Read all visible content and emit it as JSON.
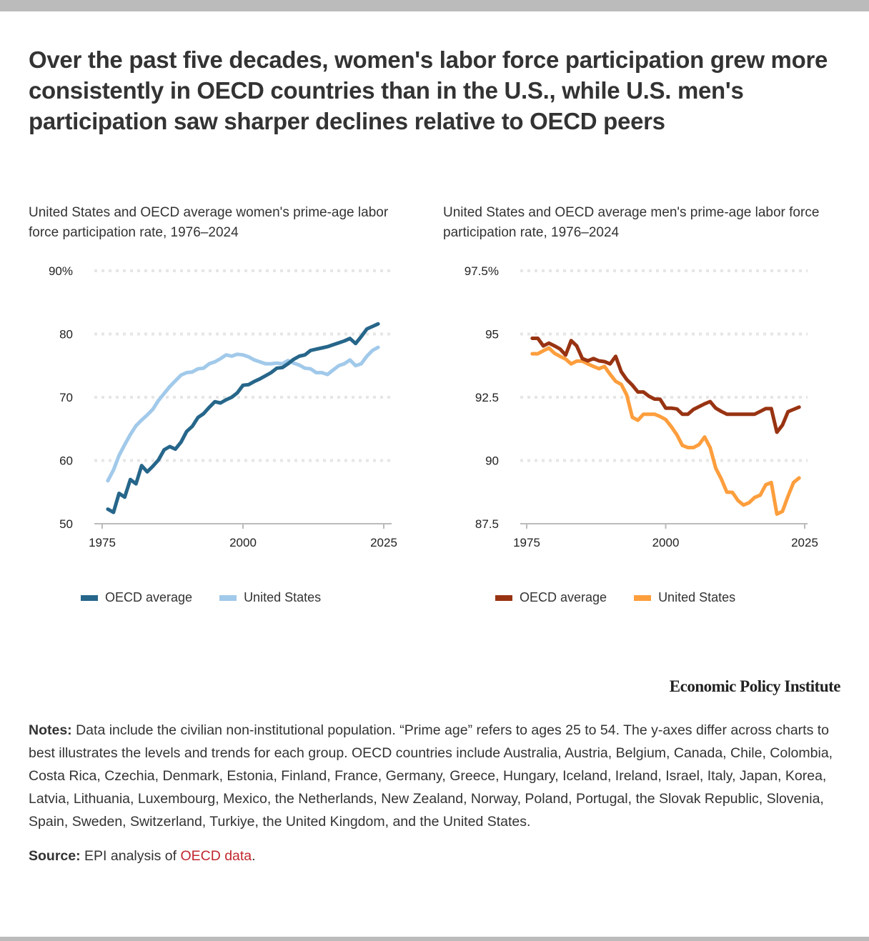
{
  "title": "Over the past five decades, women's labor force participation grew more consistently in OECD countries than in the U.S., while U.S. men's participation saw sharper declines relative to OECD peers",
  "branding": "Economic Policy Institute",
  "notes_label": "Notes:",
  "notes_text": "Data include the civilian non-institutional population. “Prime age” refers to ages 25 to 54. The y-axes differ across charts to best illustrates the levels and trends for each group. OECD countries include Australia, Austria, Belgium, Canada, Chile, Colombia, Costa Rica, Czechia, Denmark, Estonia, Finland, France, Germany, Greece, Hungary, Iceland, Ireland, Israel, Italy, Japan, Korea, Latvia, Lithuania, Luxembourg, Mexico, the Netherlands, New Zealand, Norway, Poland, Portugal, the Slovak Republic, Slovenia, Spain, Sweden, Switzerland, Turkiye, the United Kingdom, and the United States.",
  "source_label": "Source:",
  "source_prefix": "EPI analysis of",
  "source_link": "OECD data",
  "source_suffix": ".",
  "colors": {
    "women_oecd": "#26668a",
    "women_us": "#a1c9ea",
    "men_oecd": "#983312",
    "men_us": "#fd9e3d",
    "gridline": "#e6e6e6",
    "axis": "#bbbbbb",
    "link": "#c1272d"
  },
  "chart_data": [
    {
      "type": "line",
      "title": "United States and OECD average women's prime-age labor force participation rate, 1976–2024",
      "xlabel": "",
      "ylabel": "",
      "xlim": [
        1975,
        2025
      ],
      "ylim": [
        50,
        90
      ],
      "x_ticks": [
        1975,
        2000,
        2025
      ],
      "x_tick_labels": [
        "1975",
        "2000",
        "2025"
      ],
      "y_ticks": [
        50,
        60,
        70,
        80,
        90
      ],
      "y_tick_labels": [
        "50",
        "60",
        "70",
        "80",
        "90%"
      ],
      "grid": true,
      "legend_position": "bottom",
      "x": [
        1976,
        1977,
        1978,
        1979,
        1980,
        1981,
        1982,
        1983,
        1984,
        1985,
        1986,
        1987,
        1988,
        1989,
        1990,
        1991,
        1992,
        1993,
        1994,
        1995,
        1996,
        1997,
        1998,
        1999,
        2000,
        2001,
        2002,
        2003,
        2004,
        2005,
        2006,
        2007,
        2008,
        2009,
        2010,
        2011,
        2012,
        2013,
        2014,
        2015,
        2016,
        2017,
        2018,
        2019,
        2020,
        2021,
        2022,
        2023,
        2024
      ],
      "series": [
        {
          "name": "OECD average",
          "color_key": "women_oecd",
          "values": [
            52.3,
            51.8,
            54.8,
            54.2,
            57.0,
            56.3,
            59.2,
            58.2,
            59.1,
            60.1,
            61.7,
            62.2,
            61.8,
            62.9,
            64.6,
            65.4,
            66.8,
            67.4,
            68.4,
            69.3,
            69.1,
            69.6,
            70.0,
            70.7,
            71.9,
            72.0,
            72.5,
            72.9,
            73.4,
            73.9,
            74.6,
            74.7,
            75.3,
            76.0,
            76.5,
            76.7,
            77.4,
            77.6,
            77.8,
            78.0,
            78.3,
            78.6,
            78.9,
            79.3,
            78.5,
            79.6,
            80.8,
            81.2,
            81.6
          ]
        },
        {
          "name": "United States",
          "color_key": "women_us",
          "values": [
            56.8,
            58.5,
            60.8,
            62.5,
            64.1,
            65.5,
            66.4,
            67.2,
            68.1,
            69.5,
            70.6,
            71.7,
            72.6,
            73.5,
            73.9,
            74.0,
            74.5,
            74.6,
            75.3,
            75.6,
            76.1,
            76.7,
            76.5,
            76.8,
            76.7,
            76.4,
            75.9,
            75.6,
            75.3,
            75.3,
            75.4,
            75.3,
            75.8,
            75.4,
            75.1,
            74.6,
            74.5,
            73.9,
            73.9,
            73.6,
            74.3,
            75.0,
            75.3,
            75.9,
            75.0,
            75.3,
            76.5,
            77.4,
            77.9
          ]
        }
      ]
    },
    {
      "type": "line",
      "title": "United States and OECD average men's prime-age labor force participation rate, 1976–2024",
      "xlabel": "",
      "ylabel": "",
      "xlim": [
        1975,
        2025
      ],
      "ylim": [
        87.5,
        97.5
      ],
      "x_ticks": [
        1975,
        2000,
        2025
      ],
      "x_tick_labels": [
        "1975",
        "2000",
        "2025"
      ],
      "y_ticks": [
        87.5,
        90,
        92.5,
        95,
        97.5
      ],
      "y_tick_labels": [
        "87.5",
        "90",
        "92.5",
        "95",
        "97.5%"
      ],
      "grid": true,
      "legend_position": "bottom",
      "x": [
        1976,
        1977,
        1978,
        1979,
        1980,
        1981,
        1982,
        1983,
        1984,
        1985,
        1986,
        1987,
        1988,
        1989,
        1990,
        1991,
        1992,
        1993,
        1994,
        1995,
        1996,
        1997,
        1998,
        1999,
        2000,
        2001,
        2002,
        2003,
        2004,
        2005,
        2006,
        2007,
        2008,
        2009,
        2010,
        2011,
        2012,
        2013,
        2014,
        2015,
        2016,
        2017,
        2018,
        2019,
        2020,
        2021,
        2022,
        2023,
        2024
      ],
      "series": [
        {
          "name": "OECD average",
          "color_key": "men_oecd",
          "values": [
            94.83,
            94.83,
            94.53,
            94.64,
            94.53,
            94.41,
            94.17,
            94.74,
            94.53,
            94.03,
            93.94,
            94.03,
            93.94,
            93.91,
            93.82,
            94.12,
            93.51,
            93.2,
            92.98,
            92.71,
            92.71,
            92.54,
            92.43,
            92.42,
            92.07,
            92.07,
            92.04,
            91.83,
            91.83,
            92.02,
            92.13,
            92.24,
            92.33,
            92.07,
            91.94,
            91.83,
            91.83,
            91.83,
            91.83,
            91.83,
            91.83,
            91.94,
            92.05,
            92.05,
            91.12,
            91.4,
            91.93,
            92.02,
            92.11
          ]
        },
        {
          "name": "United States",
          "color_key": "men_us",
          "values": [
            94.22,
            94.22,
            94.34,
            94.45,
            94.24,
            94.12,
            94.01,
            93.82,
            93.93,
            93.93,
            93.82,
            93.72,
            93.63,
            93.72,
            93.41,
            93.13,
            93.01,
            92.59,
            91.71,
            91.59,
            91.83,
            91.83,
            91.83,
            91.74,
            91.62,
            91.34,
            91.02,
            90.6,
            90.51,
            90.51,
            90.63,
            90.93,
            90.51,
            89.7,
            89.27,
            88.75,
            88.74,
            88.42,
            88.24,
            88.33,
            88.54,
            88.63,
            89.04,
            89.13,
            87.88,
            87.99,
            88.59,
            89.13,
            89.31
          ]
        }
      ]
    }
  ]
}
